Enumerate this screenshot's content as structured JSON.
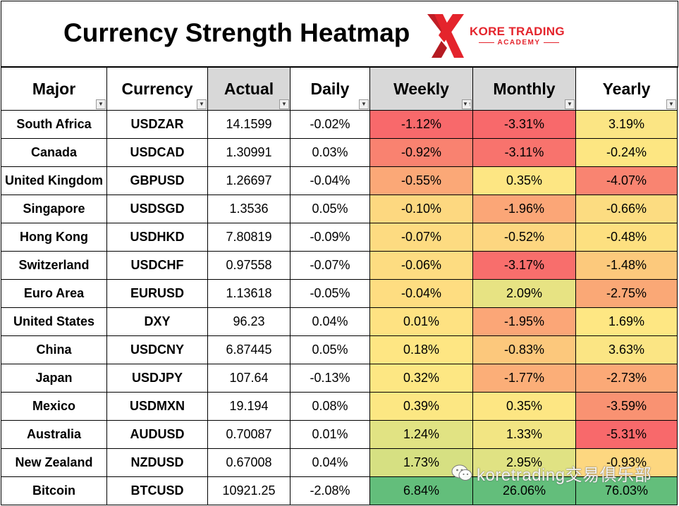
{
  "title": "Currency Strength Heatmap",
  "logo": {
    "line1": "KORE TRADING",
    "line2": "ACADEMY",
    "accent": "#e4242c"
  },
  "columns": [
    "Major",
    "Currency",
    "Actual",
    "Daily",
    "Weekly",
    "Monthly",
    "Yearly"
  ],
  "sort_icon": "sort-descending-icon",
  "filter_icon": "dropdown-arrow-icon",
  "rows": [
    {
      "major": "South Africa",
      "currency": "USDZAR",
      "actual": "14.1599",
      "daily": "-0.02%",
      "weekly": "-1.12%",
      "monthly": "-3.31%",
      "yearly": "3.19%",
      "weekly_color": "#f8696b",
      "monthly_color": "#f8696b",
      "yearly_color": "#fbe584"
    },
    {
      "major": "Canada",
      "currency": "USDCAD",
      "actual": "1.30991",
      "daily": "0.03%",
      "weekly": "-0.92%",
      "monthly": "-3.11%",
      "yearly": "-0.24%",
      "weekly_color": "#f98270",
      "monthly_color": "#f8736d",
      "yearly_color": "#fde682"
    },
    {
      "major": "United Kingdom",
      "currency": "GBPUSD",
      "actual": "1.26697",
      "daily": "-0.04%",
      "weekly": "-0.55%",
      "monthly": "0.35%",
      "yearly": "-4.07%",
      "weekly_color": "#fba877",
      "monthly_color": "#fde683",
      "yearly_color": "#f98471"
    },
    {
      "major": "Singapore",
      "currency": "USDSGD",
      "actual": "1.3536",
      "daily": "0.05%",
      "weekly": "-0.10%",
      "monthly": "-1.96%",
      "yearly": "-0.66%",
      "weekly_color": "#fdd880",
      "monthly_color": "#fba677",
      "yearly_color": "#fcdc81"
    },
    {
      "major": "Hong Kong",
      "currency": "USDHKD",
      "actual": "7.80819",
      "daily": "-0.09%",
      "weekly": "-0.07%",
      "monthly": "-0.52%",
      "yearly": "-0.48%",
      "weekly_color": "#fddb81",
      "monthly_color": "#fdd680",
      "yearly_color": "#fde080"
    },
    {
      "major": "Switzerland",
      "currency": "USDCHF",
      "actual": "0.97558",
      "daily": "-0.07%",
      "weekly": "-0.06%",
      "monthly": "-3.17%",
      "yearly": "-1.48%",
      "weekly_color": "#fddc81",
      "monthly_color": "#f86e6c",
      "yearly_color": "#fcc97c"
    },
    {
      "major": "Euro Area",
      "currency": "EURUSD",
      "actual": "1.13618",
      "daily": "-0.05%",
      "weekly": "-0.04%",
      "monthly": "2.09%",
      "yearly": "-2.75%",
      "weekly_color": "#fedd81",
      "monthly_color": "#e7e383",
      "yearly_color": "#faa876"
    },
    {
      "major": "United States",
      "currency": "DXY",
      "actual": "96.23",
      "daily": "0.04%",
      "weekly": "0.01%",
      "monthly": "-1.95%",
      "yearly": "1.69%",
      "weekly_color": "#fee282",
      "monthly_color": "#fba677",
      "yearly_color": "#fee783"
    },
    {
      "major": "China",
      "currency": "USDCNY",
      "actual": "6.87445",
      "daily": "0.05%",
      "weekly": "0.18%",
      "monthly": "-0.83%",
      "yearly": "3.63%",
      "weekly_color": "#fee683",
      "monthly_color": "#fcc87c",
      "yearly_color": "#fbe584"
    },
    {
      "major": "Japan",
      "currency": "USDJPY",
      "actual": "107.64",
      "daily": "-0.13%",
      "weekly": "0.32%",
      "monthly": "-1.77%",
      "yearly": "-2.73%",
      "weekly_color": "#fde783",
      "monthly_color": "#fbae78",
      "yearly_color": "#fba977"
    },
    {
      "major": "Mexico",
      "currency": "USDMXN",
      "actual": "19.194",
      "daily": "0.08%",
      "weekly": "0.39%",
      "monthly": "0.35%",
      "yearly": "-3.59%",
      "weekly_color": "#fce783",
      "monthly_color": "#fde683",
      "yearly_color": "#f99272"
    },
    {
      "major": "Australia",
      "currency": "AUDUSD",
      "actual": "0.70087",
      "daily": "0.01%",
      "weekly": "1.24%",
      "monthly": "1.33%",
      "yearly": "-5.31%",
      "weekly_color": "#e1e383",
      "monthly_color": "#f2e583",
      "yearly_color": "#f8696b"
    },
    {
      "major": "New Zealand",
      "currency": "NZDUSD",
      "actual": "0.67008",
      "daily": "0.04%",
      "weekly": "1.73%",
      "monthly": "2.95%",
      "yearly": "-0.93%",
      "weekly_color": "#d6e082",
      "monthly_color": "#e0e283",
      "yearly_color": "#fdd780"
    },
    {
      "major": "Bitcoin",
      "currency": "BTCUSD",
      "actual": "10921.25",
      "daily": "-2.08%",
      "weekly": "6.84%",
      "monthly": "26.06%",
      "yearly": "76.03%",
      "weekly_color": "#63be7b",
      "monthly_color": "#63be7b",
      "yearly_color": "#63be7b"
    }
  ],
  "watermark": {
    "text": "koretrading交易俱乐部",
    "icon": "wechat-icon"
  }
}
